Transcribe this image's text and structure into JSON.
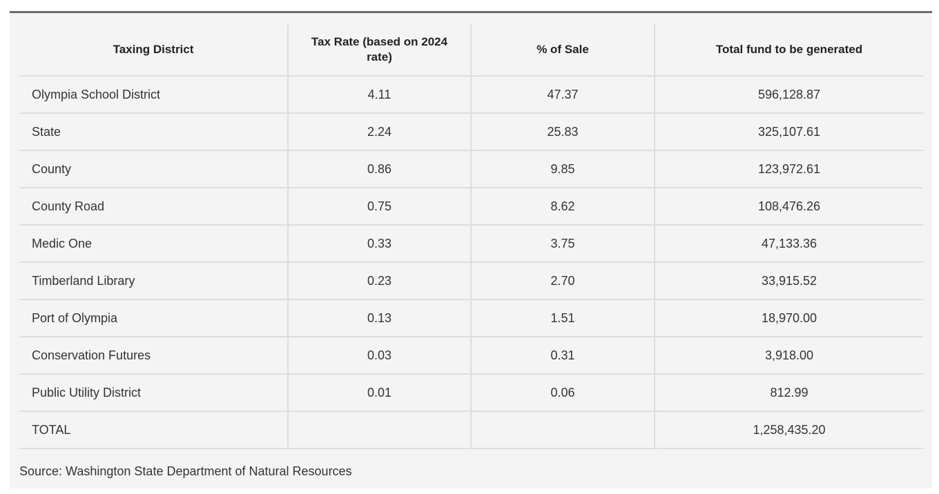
{
  "table": {
    "headers": [
      "Taxing District",
      "Tax Rate (based on 2024 rate)",
      "% of Sale",
      "Total fund to be generated"
    ],
    "rows": [
      [
        "Olympia School District",
        "4.11",
        "47.37",
        "596,128.87"
      ],
      [
        "State",
        "2.24",
        "25.83",
        "325,107.61"
      ],
      [
        "County",
        "0.86",
        "9.85",
        "123,972.61"
      ],
      [
        "County Road",
        "0.75",
        "8.62",
        "108,476.26"
      ],
      [
        "Medic One",
        "0.33",
        "3.75",
        "47,133.36"
      ],
      [
        "Timberland Library",
        "0.23",
        "2.70",
        "33,915.52"
      ],
      [
        "Port of Olympia",
        "0.13",
        "1.51",
        "18,970.00"
      ],
      [
        "Conservation Futures",
        "0.03",
        "0.31",
        "3,918.00"
      ],
      [
        "Public Utility District",
        "0.01",
        "0.06",
        "812.99"
      ],
      [
        "TOTAL",
        "",
        "",
        "1,258,435.20"
      ]
    ]
  },
  "source": "Source: Washington State Department of Natural Resources"
}
